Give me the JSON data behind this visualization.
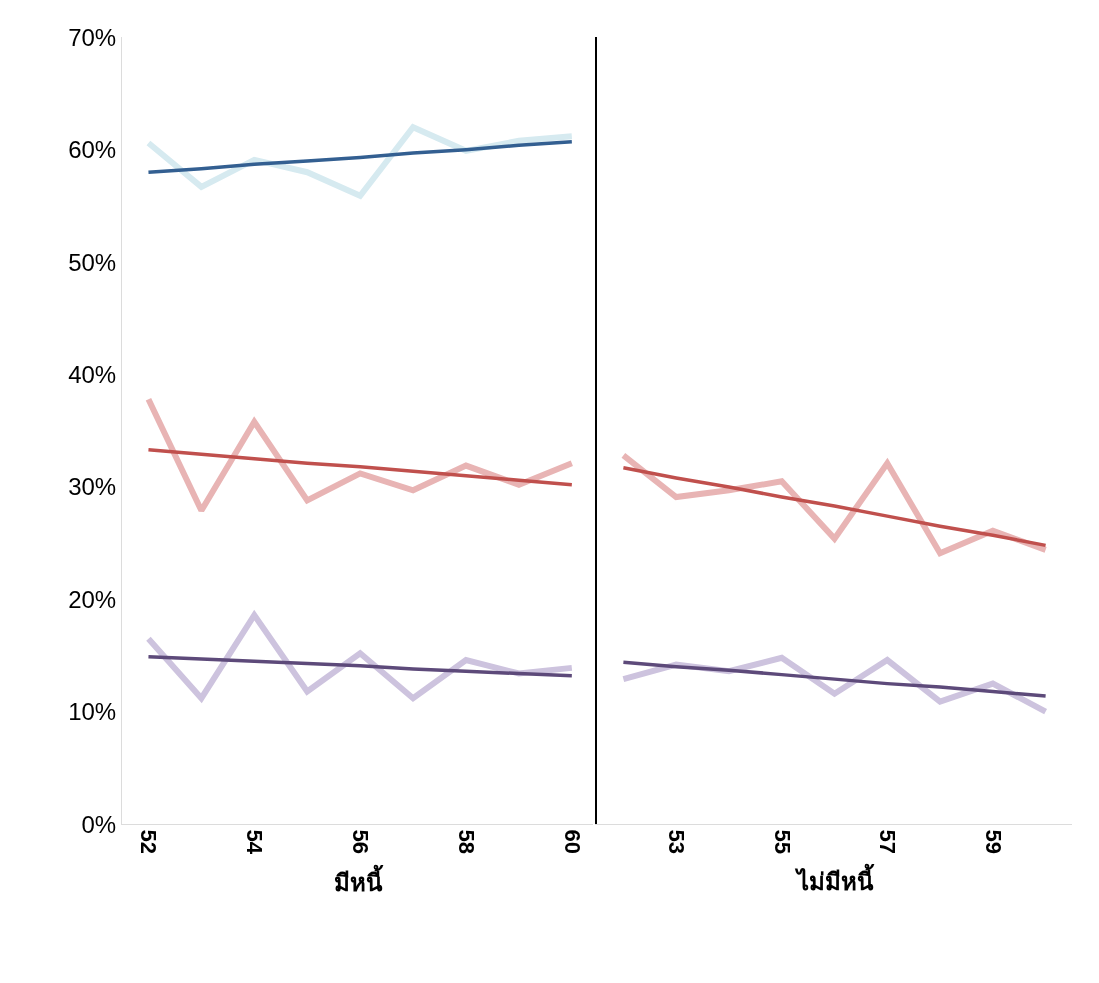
{
  "chart_data": [
    {
      "type": "line",
      "xlabel": "มีหนี้",
      "x": [
        52,
        53,
        54,
        55,
        56,
        57,
        58,
        59,
        60
      ],
      "xlim": [
        51.5,
        60.4
      ],
      "xticks": [
        52,
        54,
        56,
        58,
        60
      ],
      "ylim": [
        0,
        70
      ],
      "yticks": [
        {
          "value": 0,
          "label": "0%"
        },
        {
          "value": 10,
          "label": "10%"
        },
        {
          "value": 20,
          "label": "20%"
        },
        {
          "value": 30,
          "label": "30%"
        },
        {
          "value": 40,
          "label": "40%"
        },
        {
          "value": 50,
          "label": "50%"
        },
        {
          "value": 60,
          "label": "60%"
        },
        {
          "value": 70,
          "label": "70%"
        }
      ],
      "series": [
        {
          "color": "#d6eaf0",
          "values": [
            60.6,
            56.7,
            59.1,
            58.0,
            55.9,
            62.0,
            59.9,
            60.8,
            61.2
          ]
        },
        {
          "color": "#e8b4b4",
          "values": [
            37.8,
            27.9,
            35.8,
            28.8,
            31.2,
            29.7,
            31.9,
            30.2,
            32.1
          ]
        },
        {
          "color": "#cdc3de",
          "values": [
            16.5,
            11.2,
            18.6,
            11.8,
            15.2,
            11.2,
            14.6,
            13.4,
            13.9
          ]
        },
        {
          "color": "#335f91",
          "values": [
            58.0,
            58.3,
            58.7,
            59.0,
            59.3,
            59.7,
            60.0,
            60.4,
            60.7
          ]
        },
        {
          "color": "#c0504d",
          "values": [
            33.3,
            32.9,
            32.5,
            32.1,
            31.8,
            31.4,
            31.0,
            30.6,
            30.2
          ]
        },
        {
          "color": "#5d4a7a",
          "values": [
            14.9,
            14.7,
            14.5,
            14.3,
            14.1,
            13.8,
            13.6,
            13.4,
            13.2
          ]
        }
      ]
    },
    {
      "type": "line",
      "xlabel": "ไม่มีหนี้",
      "x": [
        52,
        53,
        54,
        55,
        56,
        57,
        58,
        59,
        60
      ],
      "xlim": [
        51.5,
        60.5
      ],
      "xticks": [
        53,
        55,
        57,
        59
      ],
      "ylim": [
        0,
        70
      ],
      "tick_labels": "x",
      "series": [
        {
          "color": "#e8b4b4",
          "values": [
            32.8,
            29.1,
            29.7,
            30.5,
            25.4,
            32.1,
            24.1,
            26.1,
            24.4
          ]
        },
        {
          "color": "#cdc3de",
          "values": [
            12.9,
            14.2,
            13.6,
            14.8,
            11.6,
            14.6,
            10.9,
            12.5,
            10.0
          ]
        },
        {
          "color": "#c0504d",
          "values": [
            31.7,
            30.8,
            30.0,
            29.1,
            28.3,
            27.4,
            26.5,
            25.7,
            24.8
          ]
        },
        {
          "color": "#5d4a7a",
          "values": [
            14.4,
            14.0,
            13.7,
            13.3,
            12.9,
            12.5,
            12.2,
            11.8,
            11.4
          ]
        }
      ]
    }
  ]
}
